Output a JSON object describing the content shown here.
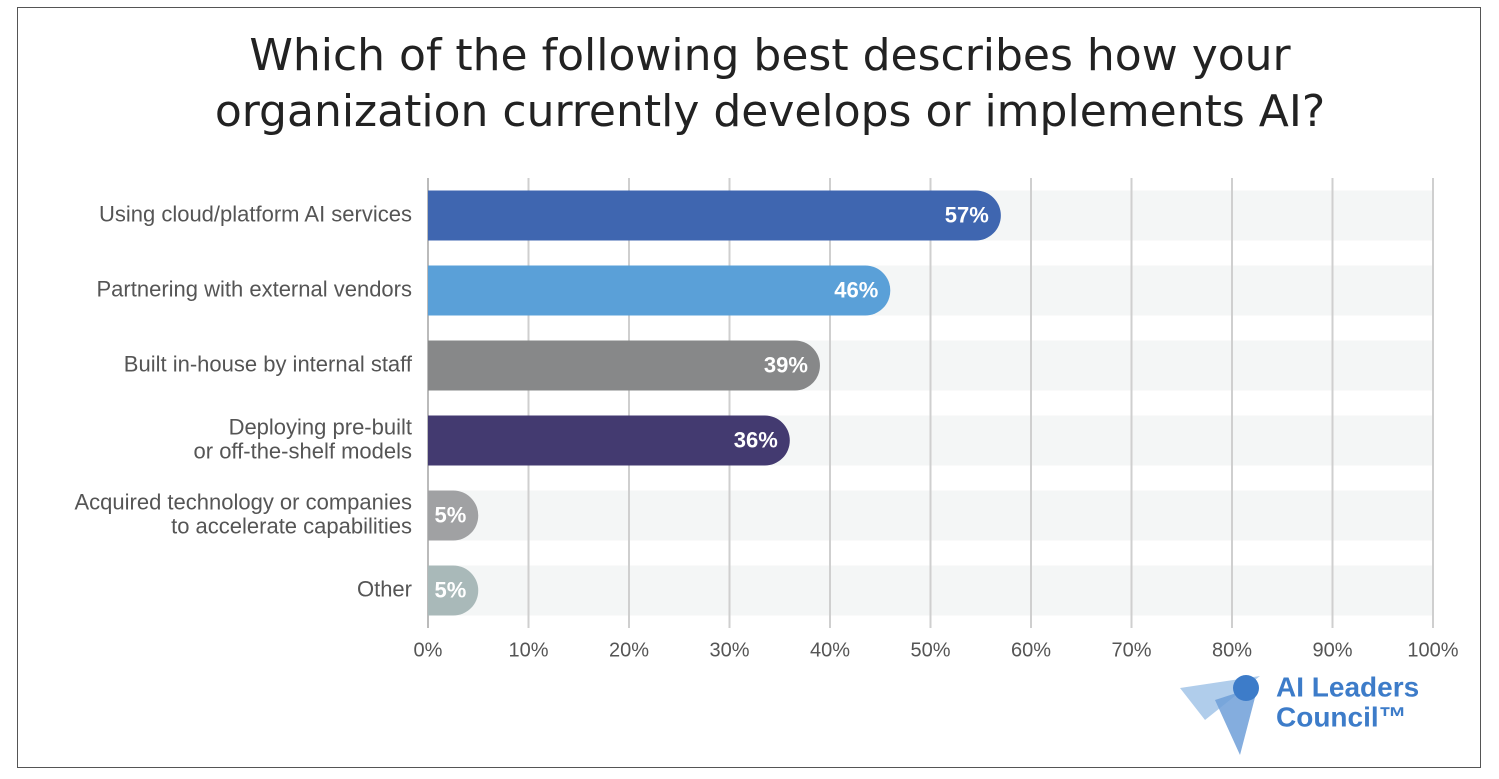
{
  "chart_data": {
    "type": "hbar",
    "title": "Which of the following best describes how your organization currently develops or implements AI?",
    "categories": [
      [
        "Using cloud/platform AI services"
      ],
      [
        "Partnering with external vendors"
      ],
      [
        "Built in-house by internal staff"
      ],
      [
        "Deploying pre-built",
        "or off-the-shelf models"
      ],
      [
        "Acquired technology or companies",
        "to accelerate capabilities"
      ],
      [
        "Other"
      ]
    ],
    "values": [
      57,
      46,
      39,
      36,
      5,
      5
    ],
    "value_labels": [
      "57%",
      "46%",
      "39%",
      "36%",
      "5%",
      "5%"
    ],
    "colors": [
      "#3f66b0",
      "#5aa0d8",
      "#878889",
      "#433a70",
      "#a0a1a3",
      "#a9b9b9"
    ],
    "xlim": [
      0,
      100
    ],
    "xticks": [
      {
        "value": 0,
        "label": "0%"
      },
      {
        "value": 10,
        "label": "10%"
      },
      {
        "value": 20,
        "label": "20%"
      },
      {
        "value": 30,
        "label": "30%"
      },
      {
        "value": 40,
        "label": "40%"
      },
      {
        "value": 50,
        "label": "50%"
      },
      {
        "value": 60,
        "label": "60%"
      },
      {
        "value": 70,
        "label": "70%"
      },
      {
        "value": 80,
        "label": "80%"
      },
      {
        "value": 90,
        "label": "90%"
      },
      {
        "value": 100,
        "label": "100%"
      }
    ],
    "grid": true
  },
  "brand": {
    "lines": [
      "AI Leaders",
      "Council™"
    ]
  }
}
